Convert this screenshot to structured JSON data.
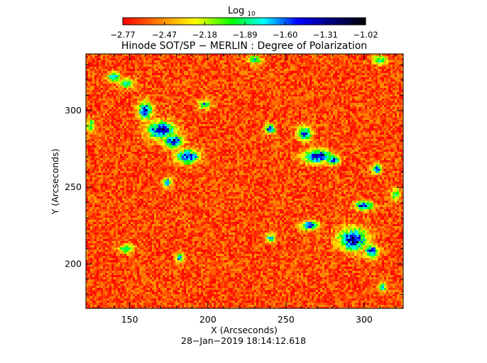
{
  "chart_data": {
    "type": "heatmap",
    "title": "Hinode SOT/SP − MERLIN : Degree of Polarization",
    "xlabel": "X (Arcseconds)",
    "ylabel": "Y (Arcseconds)",
    "timestamp": "28−Jan−2019 18:14:12.618",
    "xlim": [
      122,
      325
    ],
    "ylim": [
      171,
      337
    ],
    "x_ticks": [
      150,
      200,
      250,
      300
    ],
    "y_ticks": [
      200,
      250,
      300
    ],
    "x_tick_labels": [
      "150",
      "200",
      "250",
      "300"
    ],
    "y_tick_labels": [
      "200",
      "250",
      "300"
    ],
    "colorbar": {
      "label_main": "Log",
      "label_sub": "10",
      "range": [
        -2.77,
        -1.02
      ],
      "tick_values": [
        -2.77,
        -2.47,
        -2.18,
        -1.89,
        -1.6,
        -1.31,
        -1.02
      ],
      "tick_labels": [
        "−2.77",
        "−2.47",
        "−2.18",
        "−1.89",
        "−1.60",
        "−1.31",
        "−1.02"
      ],
      "colors": [
        "#ff0000",
        "#ff8000",
        "#ffff00",
        "#00ff00",
        "#00ffff",
        "#0000ff",
        "#000080",
        "#000000"
      ]
    },
    "background_level": -2.62,
    "features": [
      {
        "x": 160,
        "y": 300,
        "sx": 3,
        "sy": 4,
        "level": -1.35
      },
      {
        "x": 170,
        "y": 287,
        "sx": 6,
        "sy": 4,
        "level": -1.3
      },
      {
        "x": 178,
        "y": 280,
        "sx": 4,
        "sy": 3,
        "level": -1.28
      },
      {
        "x": 187,
        "y": 270,
        "sx": 5,
        "sy": 3,
        "level": -1.36
      },
      {
        "x": 174,
        "y": 253,
        "sx": 2,
        "sy": 2,
        "level": -1.6
      },
      {
        "x": 140,
        "y": 322,
        "sx": 3,
        "sy": 2,
        "level": -1.65
      },
      {
        "x": 148,
        "y": 318,
        "sx": 3,
        "sy": 2,
        "level": -1.7
      },
      {
        "x": 198,
        "y": 304,
        "sx": 3,
        "sy": 2,
        "level": -1.78
      },
      {
        "x": 240,
        "y": 288,
        "sx": 2,
        "sy": 2,
        "level": -1.4
      },
      {
        "x": 262,
        "y": 285,
        "sx": 3,
        "sy": 3,
        "level": -1.45
      },
      {
        "x": 270,
        "y": 270,
        "sx": 6,
        "sy": 3,
        "level": -1.28
      },
      {
        "x": 280,
        "y": 268,
        "sx": 3,
        "sy": 2,
        "level": -1.4
      },
      {
        "x": 308,
        "y": 262,
        "sx": 2,
        "sy": 2,
        "level": -1.45
      },
      {
        "x": 300,
        "y": 238,
        "sx": 4,
        "sy": 2,
        "level": -1.45
      },
      {
        "x": 265,
        "y": 225,
        "sx": 4,
        "sy": 2,
        "level": -1.45
      },
      {
        "x": 293,
        "y": 216,
        "sx": 6,
        "sy": 5,
        "level": -1.26
      },
      {
        "x": 305,
        "y": 208,
        "sx": 3,
        "sy": 3,
        "level": -1.4
      },
      {
        "x": 240,
        "y": 217,
        "sx": 2,
        "sy": 2,
        "level": -1.7
      },
      {
        "x": 148,
        "y": 210,
        "sx": 3,
        "sy": 2,
        "level": -1.75
      },
      {
        "x": 182,
        "y": 204,
        "sx": 2,
        "sy": 2,
        "level": -1.75
      },
      {
        "x": 312,
        "y": 185,
        "sx": 2,
        "sy": 2,
        "level": -1.8
      },
      {
        "x": 310,
        "y": 333,
        "sx": 3,
        "sy": 2,
        "level": -1.8
      },
      {
        "x": 230,
        "y": 333,
        "sx": 3,
        "sy": 2,
        "level": -1.85
      },
      {
        "x": 125,
        "y": 290,
        "sx": 2,
        "sy": 3,
        "level": -1.85
      },
      {
        "x": 320,
        "y": 245,
        "sx": 2,
        "sy": 3,
        "level": -1.85
      }
    ]
  }
}
